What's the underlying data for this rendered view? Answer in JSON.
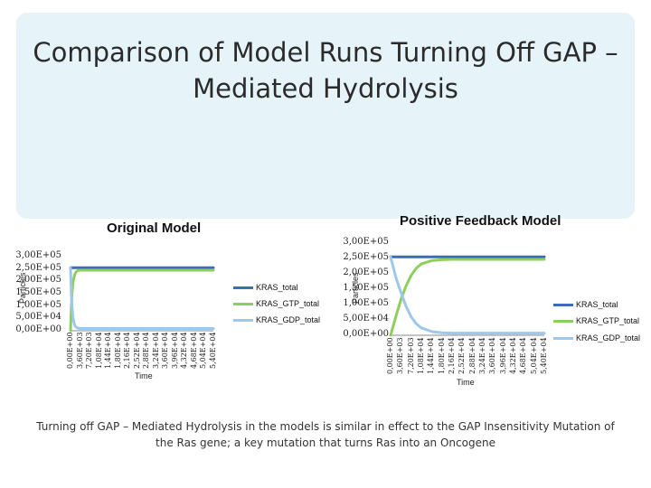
{
  "slide": {
    "title": "Comparison of Model Runs Turning Off GAP – Mediated Hydrolysis",
    "caption": "Turning off GAP – Mediated Hydrolysis in the models is similar in effect to the GAP Insensitivity Mutation of the Ras gene; a key mutation that turns Ras into an Oncogene"
  },
  "colors": {
    "KRAS_total": "#3a6db3",
    "KRAS_GTP_total": "#8dcf5f",
    "KRAS_GDP_total": "#9ec7ea"
  },
  "chart_data": [
    {
      "type": "line",
      "title": "Original Model",
      "xlabel": "Time",
      "ylabel": "Particles",
      "ylim": [
        0,
        300000
      ],
      "y_ticks": [
        "3,00E+05",
        "2,50E+05",
        "2,00E+05",
        "1,50E+05",
        "1,00E+05",
        "5,00E+04",
        "0,00E+00"
      ],
      "x_ticks": [
        "0,00E+00",
        "3,60E+03",
        "7,20E+03",
        "1,08E+04",
        "1,44E+04",
        "1,80E+04",
        "2,16E+04",
        "2,52E+04",
        "2,88E+04",
        "3,24E+04",
        "3,60E+04",
        "3,96E+04",
        "4,32E+04",
        "4,68E+04",
        "5,04E+04",
        "5,40E+04"
      ],
      "legend_position": "right",
      "series": [
        {
          "name": "KRAS_total",
          "x": [
            0,
            3600,
            7200,
            54000
          ],
          "values": [
            255000,
            255000,
            255000,
            255000
          ]
        },
        {
          "name": "KRAS_GTP_total",
          "x": [
            0,
            300,
            600,
            1000,
            1500,
            2000,
            2500,
            3000,
            3600,
            54000
          ],
          "values": [
            0,
            100000,
            160000,
            200000,
            225000,
            237000,
            242000,
            244000,
            245000,
            245000
          ]
        },
        {
          "name": "KRAS_GDP_total",
          "x": [
            0,
            300,
            600,
            1000,
            1500,
            2000,
            2500,
            3000,
            3600,
            54000
          ],
          "values": [
            255000,
            150000,
            90000,
            50000,
            25000,
            15000,
            12000,
            10000,
            9000,
            9000
          ]
        }
      ]
    },
    {
      "type": "line",
      "title": "Positive Feedback Model",
      "xlabel": "Time",
      "ylabel": "Particles",
      "ylim": [
        0,
        300000
      ],
      "y_ticks": [
        "3,00E+05",
        "2,50E+05",
        "2,00E+05",
        "1,50E+05",
        "1,00E+05",
        "5,00E+04",
        "0,00E+00"
      ],
      "x_ticks": [
        "0,00E+00",
        "3,60E+03",
        "7,20E+03",
        "1,08E+04",
        "1,44E+04",
        "1,80E+04",
        "2,16E+04",
        "2,52E+04",
        "2,88E+04",
        "3,24E+04",
        "3,60E+04",
        "3,96E+04",
        "4,32E+04",
        "4,68E+04",
        "5,04E+04",
        "5,40E+04"
      ],
      "legend_position": "right",
      "series": [
        {
          "name": "KRAS_total",
          "x": [
            0,
            54000
          ],
          "values": [
            255000,
            255000
          ]
        },
        {
          "name": "KRAS_GTP_total",
          "x": [
            0,
            1800,
            3600,
            5400,
            7200,
            9000,
            10800,
            14400,
            18000,
            21600,
            54000
          ],
          "values": [
            0,
            60000,
            115000,
            160000,
            195000,
            218000,
            232000,
            243000,
            246000,
            247000,
            247000
          ]
        },
        {
          "name": "KRAS_GDP_total",
          "x": [
            0,
            1800,
            3600,
            5400,
            7200,
            9000,
            10800,
            14400,
            18000,
            21600,
            54000
          ],
          "values": [
            255000,
            190000,
            140000,
            95000,
            60000,
            38000,
            24000,
            12000,
            8000,
            7000,
            7000
          ]
        }
      ]
    }
  ]
}
